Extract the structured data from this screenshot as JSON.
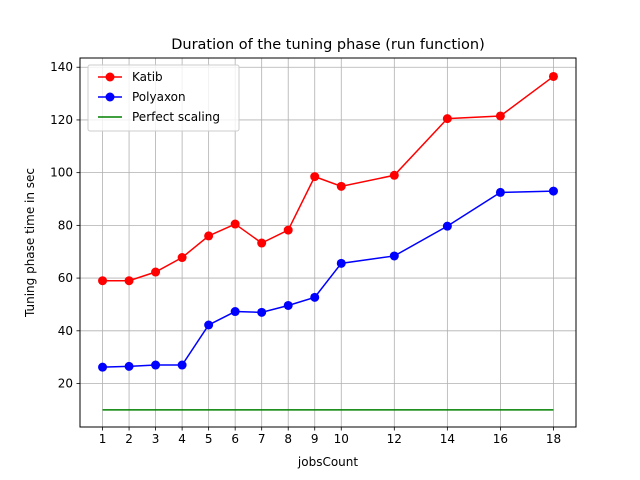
{
  "chart_data": {
    "type": "line",
    "title": "Duration of the tuning phase (run function)",
    "xlabel": "jobsCount",
    "ylabel": "Tuning phase time in sec",
    "xlim": [
      0.15,
      18.85
    ],
    "ylim": [
      3.5,
      143.5
    ],
    "xticks": [
      1,
      2,
      3,
      4,
      5,
      6,
      7,
      8,
      9,
      10,
      12,
      14,
      16,
      18
    ],
    "yticks": [
      20,
      40,
      60,
      80,
      100,
      120,
      140
    ],
    "grid": true,
    "legend_position": "top-left",
    "x": [
      1,
      2,
      3,
      4,
      5,
      6,
      7,
      8,
      9,
      10,
      12,
      14,
      16,
      18
    ],
    "series": [
      {
        "name": "Katib",
        "color": "#ff0000",
        "marker": true,
        "values": [
          59.0,
          59.0,
          62.3,
          67.8,
          76.0,
          80.5,
          73.3,
          78.2,
          98.5,
          94.8,
          99.0,
          120.5,
          121.5,
          136.5
        ]
      },
      {
        "name": "Polyaxon",
        "color": "#0000ff",
        "marker": true,
        "values": [
          26.2,
          26.5,
          27.0,
          27.0,
          42.2,
          47.3,
          47.0,
          49.6,
          52.7,
          65.6,
          68.4,
          79.7,
          92.5,
          93.0
        ]
      },
      {
        "name": "Perfect scaling",
        "color": "#008000",
        "marker": false,
        "values": [
          10.0,
          10.0,
          10.0,
          10.0,
          10.0,
          10.0,
          10.0,
          10.0,
          10.0,
          10.0,
          10.0,
          10.0,
          10.0,
          10.0
        ]
      }
    ]
  }
}
